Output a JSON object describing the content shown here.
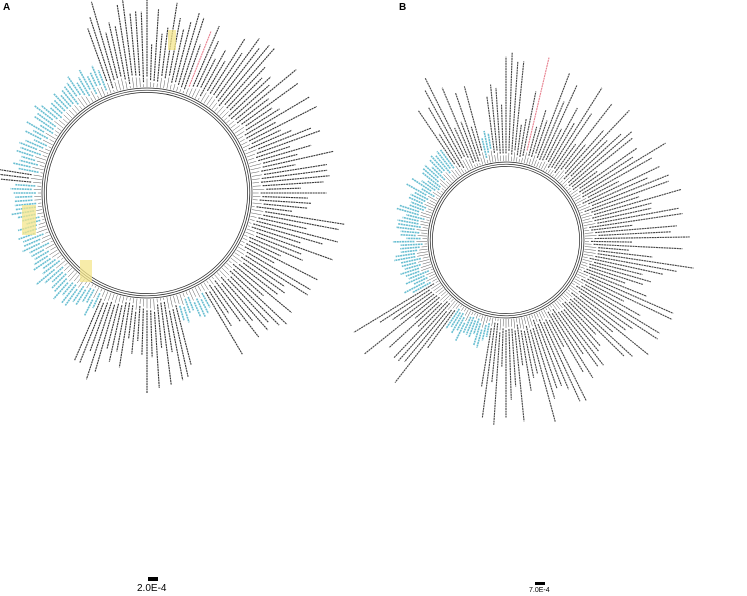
{
  "figure": {
    "panels": [
      {
        "label": "A",
        "scale_bar_label": "2.0E-4",
        "tree_type": "circular phylogenetic tree",
        "leaf_label_colors": [
          "#4fb3c9",
          "#111111",
          "#e36a7b"
        ],
        "highlight_color": "#f4e58c"
      },
      {
        "label": "B",
        "scale_bar_label": "7.0E-4",
        "tree_type": "circular phylogenetic tree",
        "leaf_label_colors": [
          "#4fb3c9",
          "#222222",
          "#e36a7b"
        ]
      }
    ]
  }
}
